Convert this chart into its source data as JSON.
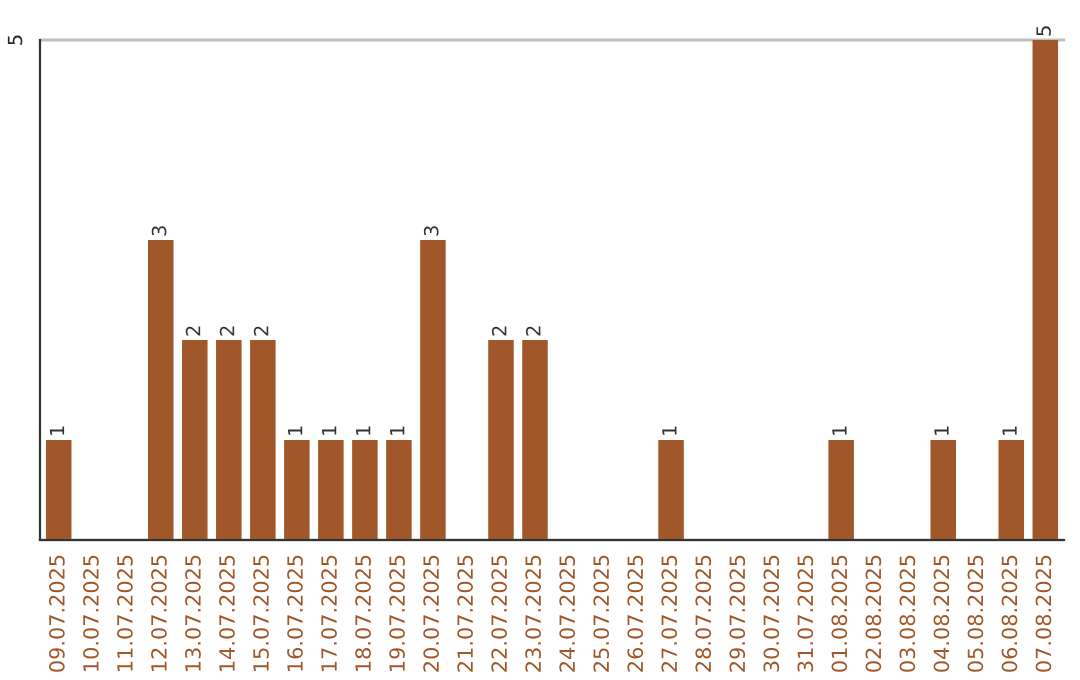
{
  "chart_data": {
    "type": "bar",
    "categories": [
      "09.07.2025",
      "10.07.2025",
      "11.07.2025",
      "12.07.2025",
      "13.07.2025",
      "14.07.2025",
      "15.07.2025",
      "16.07.2025",
      "17.07.2025",
      "18.07.2025",
      "19.07.2025",
      "20.07.2025",
      "21.07.2025",
      "22.07.2025",
      "23.07.2025",
      "24.07.2025",
      "25.07.2025",
      "26.07.2025",
      "27.07.2025",
      "28.07.2025",
      "29.07.2025",
      "30.07.2025",
      "31.07.2025",
      "01.08.2025",
      "02.08.2025",
      "03.08.2025",
      "04.08.2025",
      "05.08.2025",
      "06.08.2025",
      "07.08.2025"
    ],
    "values": [
      1,
      0,
      0,
      3,
      2,
      2,
      2,
      1,
      1,
      1,
      1,
      3,
      0,
      2,
      2,
      0,
      0,
      0,
      1,
      0,
      0,
      0,
      0,
      1,
      0,
      0,
      1,
      0,
      1,
      5
    ],
    "value_labels": [
      "1",
      null,
      null,
      "3",
      "2",
      "2",
      "2",
      "1",
      "1",
      "1",
      "1",
      "3",
      null,
      "2",
      "2",
      null,
      null,
      null,
      "1",
      null,
      null,
      null,
      null,
      "1",
      null,
      null,
      "1",
      null,
      "1",
      "5"
    ],
    "color": "#a0582a",
    "ylim": [
      0,
      5
    ],
    "yticks": [
      {
        "value": 0,
        "label": null
      },
      5
    ],
    "grid": "y"
  }
}
